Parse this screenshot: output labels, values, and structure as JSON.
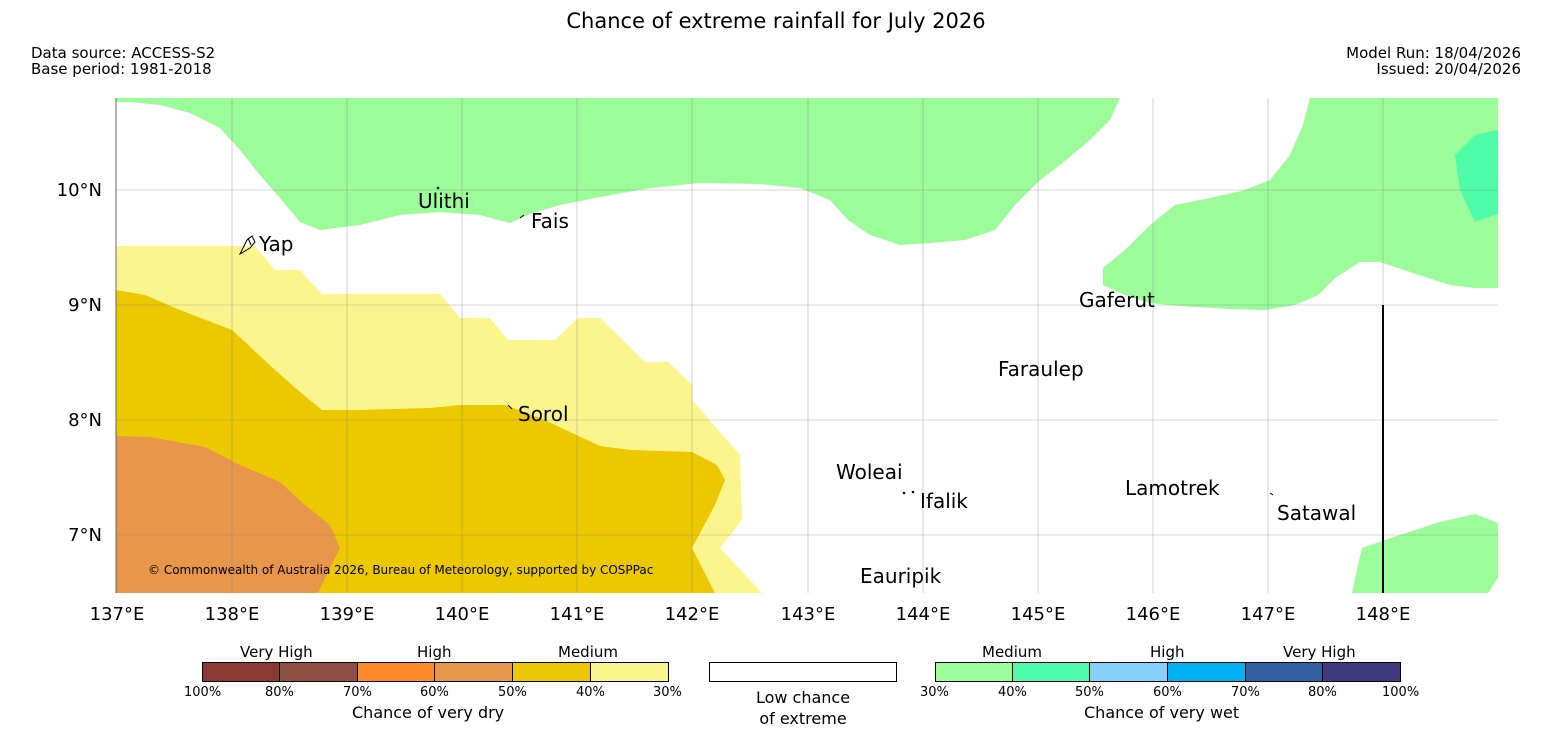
{
  "title": "Chance of extreme rainfall for July 2026",
  "meta": {
    "data_source": "Data source: ACCESS-S2",
    "base_period": "Base period: 1981-2018",
    "model_run": "Model Run: 18/04/2026",
    "issued": "Issued: 20/04/2026"
  },
  "map": {
    "lon_labels": [
      "137°E",
      "138°E",
      "139°E",
      "140°E",
      "141°E",
      "142°E",
      "143°E",
      "144°E",
      "145°E",
      "146°E",
      "147°E",
      "148°E"
    ],
    "lat_labels": [
      "10°N",
      "9°N",
      "8°N",
      "7°N"
    ],
    "places": {
      "ulithi": "Ulithi",
      "fais": "Fais",
      "yap": "Yap",
      "gaferut": "Gaferut",
      "faraulep": "Faraulep",
      "sorol": "Sorol",
      "woleai": "Woleai",
      "ifalik": "Ifalik",
      "lamotrek": "Lamotrek",
      "satawal": "Satawal",
      "eauripik": "Eauripik"
    },
    "copyright": "© Commonwealth of Australia 2026, Bureau of Meteorology, supported by COSPPac"
  },
  "colors": {
    "dry_very_high_1": "#8b3a32",
    "dry_very_high_2": "#8b5040",
    "dry_high_1": "#ff8a2a",
    "dry_high_2": "#e8974a",
    "dry_medium_1": "#ecc800",
    "dry_medium_2": "#fbf58e",
    "wet_medium_1": "#9cfc9a",
    "wet_medium_2": "#50fca8",
    "wet_high_1": "#86d0fb",
    "wet_high_2": "#00b0f0",
    "wet_very_high_1": "#3060a0",
    "wet_very_high_2": "#3c3c7c"
  },
  "legend": {
    "dry": {
      "heads": [
        "Very High",
        "High",
        "Medium"
      ],
      "ticks": [
        "100%",
        "80%",
        "70%",
        "60%",
        "50%",
        "40%",
        "30%"
      ],
      "title": "Chance of very dry"
    },
    "neutral": {
      "line1": "Low chance",
      "line2": "of extreme"
    },
    "wet": {
      "heads": [
        "Medium",
        "High",
        "Very High"
      ],
      "ticks": [
        "30%",
        "40%",
        "50%",
        "60%",
        "70%",
        "80%",
        "100%"
      ],
      "title": "Chance of very wet"
    }
  }
}
